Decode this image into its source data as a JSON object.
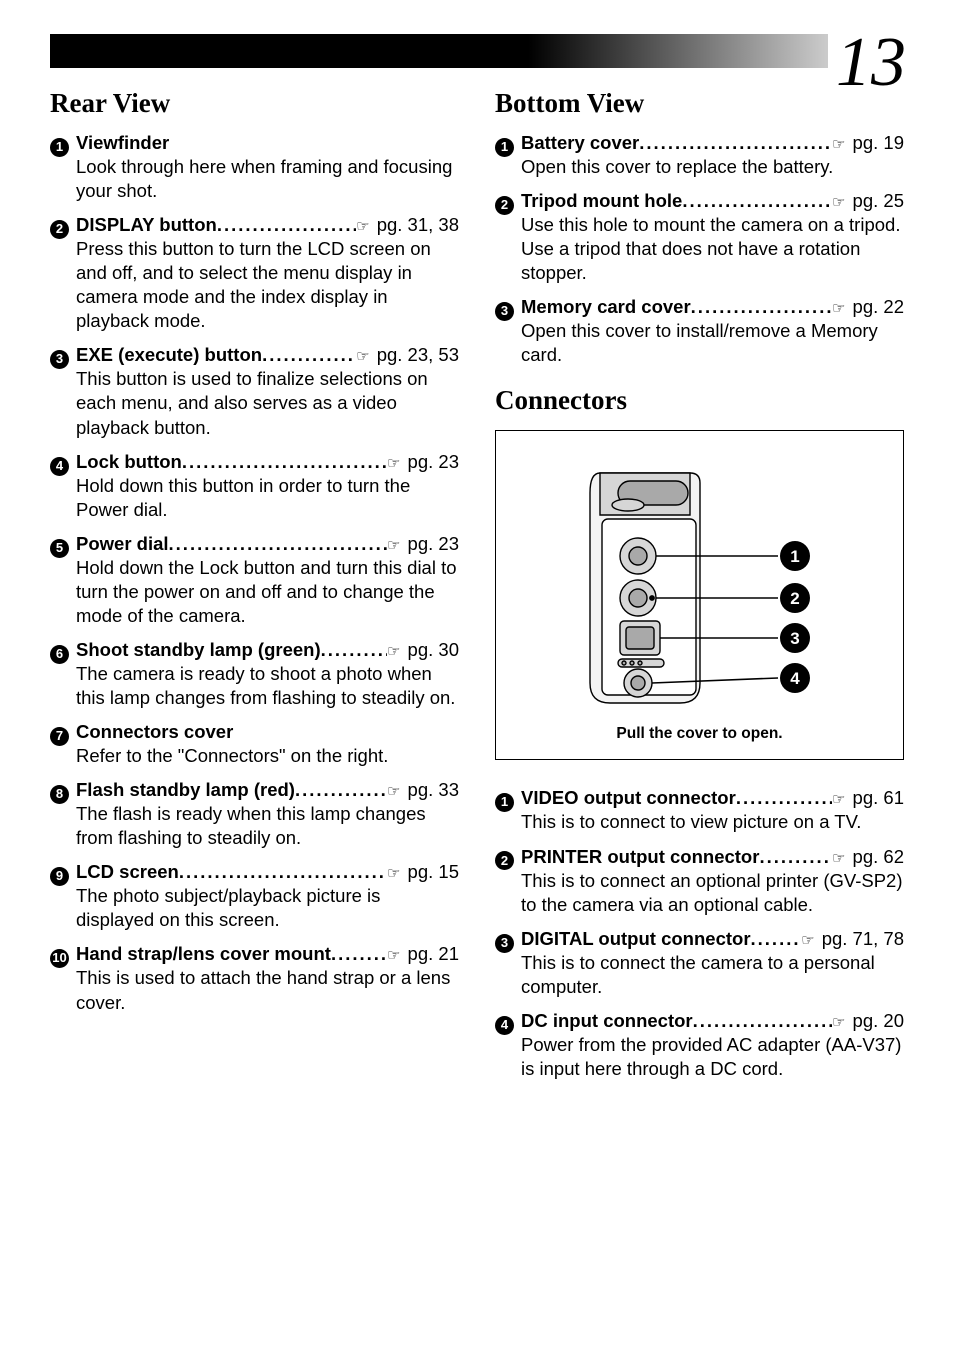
{
  "page_number": "13",
  "left": {
    "title": "Rear View",
    "items": [
      {
        "num": "1",
        "title": "Viewfinder",
        "page": "",
        "body": "Look through here when framing and focusing your shot."
      },
      {
        "num": "2",
        "title": "DISPLAY button",
        "page": "pg. 31, 38",
        "body": "Press this button to turn the LCD screen on and off, and to select the menu display in camera mode and the index display in playback mode."
      },
      {
        "num": "3",
        "title": "EXE (execute) button",
        "page": "pg. 23, 53",
        "body": "This button is used to finalize selections on each menu, and also serves as a video playback button."
      },
      {
        "num": "4",
        "title": "Lock button",
        "page": "pg. 23",
        "body": "Hold down this button in order to turn the Power dial."
      },
      {
        "num": "5",
        "title": "Power dial",
        "page": "pg. 23",
        "body": "Hold down the Lock button and turn this dial to turn the power on and off and to change the mode of the camera."
      },
      {
        "num": "6",
        "title": "Shoot standby lamp (green)",
        "page": "pg. 30",
        "body": "The camera is ready to shoot a photo when this lamp changes from flashing to steadily on."
      },
      {
        "num": "7",
        "title": "Connectors cover",
        "page": "",
        "body": "Refer to the \"Connectors\" on the right."
      },
      {
        "num": "8",
        "title": "Flash standby lamp (red)",
        "page": "pg. 33",
        "body": "The flash is ready when this lamp changes from flashing to steadily on."
      },
      {
        "num": "9",
        "title": "LCD screen",
        "page": "pg. 15",
        "body": "The photo subject/playback picture is displayed on this screen."
      },
      {
        "num": "10",
        "title": "Hand strap/lens cover mount",
        "page": "pg. 21",
        "body": "This is used to attach the hand strap or a lens cover."
      }
    ]
  },
  "right_top": {
    "title": "Bottom View",
    "items": [
      {
        "num": "1",
        "title": "Battery cover",
        "page": "pg. 19",
        "body": "Open this cover to replace the battery."
      },
      {
        "num": "2",
        "title": "Tripod mount hole",
        "page": "pg. 25",
        "body": "Use this hole to mount the camera on a tripod. Use a tripod that does not have a rotation stopper."
      },
      {
        "num": "3",
        "title": "Memory card cover",
        "page": "pg. 22",
        "body": "Open this cover to install/remove a Memory card."
      }
    ]
  },
  "right_bottom": {
    "title": "Connectors",
    "diagram": {
      "caption": "Pull the cover to open.",
      "callouts": [
        "1",
        "2",
        "3",
        "4"
      ],
      "colors": {
        "outline": "#000000",
        "fill_light": "#f4f4f4",
        "fill_mid": "#d6d6d6",
        "fill_dark": "#a9a9a9"
      }
    },
    "items": [
      {
        "num": "1",
        "title": "VIDEO output connector",
        "page": "pg. 61",
        "body": "This is to connect to view picture on a TV."
      },
      {
        "num": "2",
        "title": "PRINTER output connector",
        "page": "pg. 62",
        "body": "This is to connect an optional printer (GV-SP2) to the camera via an optional cable."
      },
      {
        "num": "3",
        "title": "DIGITAL output connector",
        "page": "pg. 71, 78",
        "body": "This is to connect the camera to a personal computer."
      },
      {
        "num": "4",
        "title": "DC input connector",
        "page": "pg. 20",
        "body": "Power from the provided AC adapter (AA-V37) is input here through a DC cord."
      }
    ]
  }
}
